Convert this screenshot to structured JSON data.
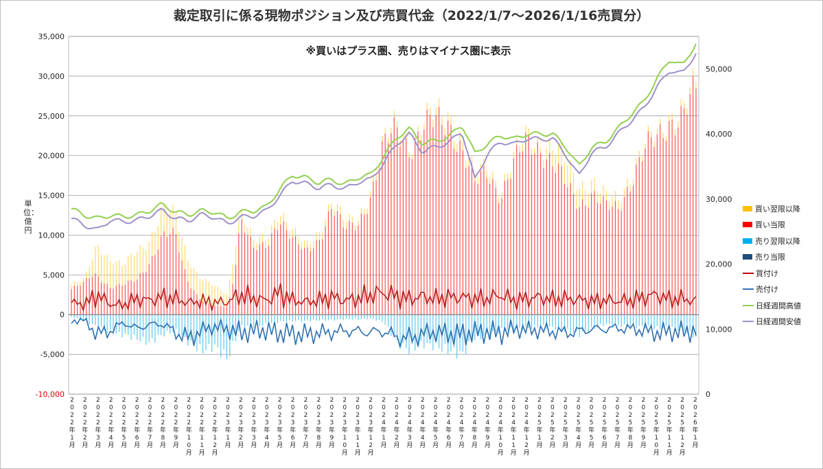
{
  "chart_data": {
    "type": "bar",
    "title": "裁定取引に係る現物ポジション及び売買代金（2022/1/7～2026/1/16売買分）",
    "subtitle": "※買いはプラス圏、売りはマイナス圏に表示",
    "ylabel": "単位：億円",
    "ylim": [
      -10000,
      35000
    ],
    "y2lim": [
      0,
      55000
    ],
    "y_ticks": [
      "35,000",
      "30,000",
      "25,000",
      "20,000",
      "15,000",
      "10,000",
      "5,000",
      "0",
      "-5,000",
      "-10,000"
    ],
    "y2_ticks": [
      "50,000",
      "40,000",
      "30,000",
      "20,000",
      "10,000",
      "0"
    ],
    "x_labels": [
      "2022年1月",
      "2022年2月",
      "2022年3月",
      "2022年4月",
      "2022年5月",
      "2022年6月",
      "2022年7月",
      "2022年8月",
      "2022年9月",
      "2022年10月",
      "2022年11月",
      "2022年12月",
      "2023年1月",
      "2023年2月",
      "2023年3月",
      "2023年4月",
      "2023年5月",
      "2023年6月",
      "2023年7月",
      "2023年8月",
      "2023年9月",
      "2023年10月",
      "2023年11月",
      "2023年12月",
      "2024年1月",
      "2024年2月",
      "2024年3月",
      "2024年4月",
      "2024年5月",
      "2024年6月",
      "2024年7月",
      "2024年8月",
      "2024年9月",
      "2024年10月",
      "2024年11月",
      "2024年12月",
      "2025年1月",
      "2025年2月",
      "2025年3月",
      "2025年4月",
      "2025年5月",
      "2025年6月",
      "2025年7月",
      "2025年8月",
      "2025年9月",
      "2025年10月",
      "2025年11月",
      "2025年12月",
      "2026年1月"
    ],
    "legend_placement": "right",
    "grid": true,
    "series": [
      {
        "name": "買い翌限以降",
        "kind": "bar",
        "axis": "left",
        "color": "#ffc000",
        "values": [
          0,
          0,
          0,
          0,
          0,
          0,
          0,
          0,
          0,
          0,
          0,
          0,
          0,
          0,
          0,
          0,
          0,
          0,
          0,
          0,
          0,
          0,
          0,
          0,
          0,
          0,
          0,
          0,
          0,
          0,
          0,
          0,
          0,
          0,
          0,
          0,
          0,
          0,
          0,
          0,
          0,
          0,
          0,
          0,
          0,
          0,
          0,
          0,
          0
        ]
      },
      {
        "name": "買い当限",
        "kind": "bar",
        "axis": "left",
        "color": "#ff0000",
        "values": []
      },
      {
        "name": "売り翌限以降",
        "kind": "bar",
        "axis": "left",
        "color": "#00b0f0",
        "values": []
      },
      {
        "name": "売り当限",
        "kind": "bar",
        "axis": "left",
        "color": "#1f4e79",
        "values": []
      },
      {
        "name": "買付け",
        "kind": "line",
        "axis": "left",
        "color": "#c00000",
        "values": []
      },
      {
        "name": "売付け",
        "kind": "line",
        "axis": "left",
        "color": "#2e75b6",
        "values": []
      },
      {
        "name": "日経週間高値",
        "kind": "line",
        "axis": "right",
        "color": "#92d050",
        "values": []
      },
      {
        "name": "日経週間安値",
        "kind": "line",
        "axis": "right",
        "color": "#9e8fc9",
        "values": []
      }
    ],
    "monthly": {
      "buy_total": [
        3800,
        4300,
        9000,
        7000,
        6000,
        8000,
        9500,
        13000,
        12500,
        7000,
        4500,
        3500,
        2500,
        13500,
        9000,
        9500,
        13500,
        10500,
        8500,
        10500,
        14500,
        11500,
        12000,
        16000,
        21500,
        24000,
        22000,
        24000,
        25000,
        25500,
        22000,
        17000,
        19000,
        16000,
        19500,
        22500,
        22000,
        21000,
        19000,
        16500,
        17000,
        14500,
        14500,
        18000,
        21000,
        22500,
        25500,
        26000,
        28500
      ],
      "buy_nextpct": [
        0.15,
        0.1,
        0.45,
        0.5,
        0.4,
        0.45,
        0.3,
        0.25,
        0.2,
        0.4,
        0.6,
        0.7,
        0.6,
        0.08,
        0.1,
        0.1,
        0.08,
        0.1,
        0.1,
        0.1,
        0.05,
        0.08,
        0.05,
        0.05,
        0.03,
        0.03,
        0.03,
        0.03,
        0.04,
        0.04,
        0.05,
        0.05,
        0.05,
        0.05,
        0.04,
        0.04,
        0.03,
        0.1,
        0.15,
        0.15,
        0.1,
        0.08,
        0.08,
        0.05,
        0.03,
        0.03,
        0.03,
        0.03,
        0.03
      ],
      "sell_next": [
        300,
        800,
        1500,
        2300,
        2500,
        3000,
        3500,
        2500,
        2000,
        3500,
        4500,
        4000,
        5500,
        1500,
        1500,
        1200,
        900,
        800,
        800,
        700,
        700,
        600,
        600,
        500,
        900,
        3500,
        4500,
        3700,
        4000,
        4500,
        5000,
        3000,
        2500,
        2000,
        1800,
        1700,
        1500,
        1600,
        2000,
        2500,
        1800,
        1200,
        1300,
        1500,
        1500,
        1700,
        1600,
        1900,
        2800
      ],
      "buy_flow": [
        1500,
        1300,
        2500,
        1300,
        1200,
        2000,
        1800,
        2200,
        2000,
        1500,
        1700,
        1500,
        1600,
        2500,
        2000,
        1800,
        2800,
        1800,
        1600,
        1800,
        2200,
        1800,
        2000,
        2500,
        2800,
        2300,
        2000,
        2300,
        2000,
        2200,
        2200,
        2000,
        2000,
        2500,
        1800,
        2000,
        2200,
        1900,
        2000,
        1900,
        1700,
        1800,
        1700,
        1800,
        2200,
        2500,
        1900,
        2000,
        1700
      ],
      "sell_flow": [
        -800,
        -700,
        -2500,
        -2000,
        -1000,
        -1800,
        -1200,
        -1200,
        -2200,
        -3000,
        -2000,
        -1500,
        -1800,
        -2300,
        -2000,
        -2000,
        -2300,
        -2400,
        -2500,
        -2300,
        -2200,
        -2000,
        -2100,
        -2200,
        -2100,
        -2800,
        -3000,
        -2400,
        -2200,
        -2400,
        -2500,
        -2200,
        -2200,
        -2300,
        -1800,
        -1900,
        -2000,
        -2100,
        -2300,
        -2100,
        -1800,
        -1800,
        -1700,
        -1800,
        -2000,
        -2300,
        -2100,
        -2200,
        -2000
      ],
      "nikkei_high": [
        28500,
        27500,
        27000,
        27500,
        27300,
        27500,
        28200,
        29200,
        28000,
        27600,
        28200,
        28000,
        27000,
        28000,
        28200,
        28800,
        31500,
        33700,
        33300,
        32500,
        33000,
        32200,
        33300,
        33700,
        36500,
        39500,
        40800,
        38500,
        39000,
        39500,
        41500,
        37000,
        38500,
        39800,
        39200,
        40000,
        40000,
        40000,
        38000,
        35000,
        38000,
        38700,
        40800,
        43000,
        45000,
        48500,
        51500,
        50500,
        54000
      ],
      "nikkei_low": [
        27000,
        26000,
        25200,
        26800,
        26500,
        26700,
        27400,
        28300,
        27000,
        26700,
        27600,
        27200,
        26200,
        27200,
        27400,
        28200,
        30500,
        32800,
        32400,
        31700,
        32200,
        31500,
        32600,
        33000,
        35500,
        38500,
        40000,
        37200,
        38100,
        38600,
        40500,
        33000,
        37000,
        38800,
        38400,
        39300,
        39200,
        39300,
        36800,
        33500,
        37200,
        37900,
        40000,
        42000,
        44000,
        47200,
        49800,
        49300,
        52500
      ]
    }
  }
}
